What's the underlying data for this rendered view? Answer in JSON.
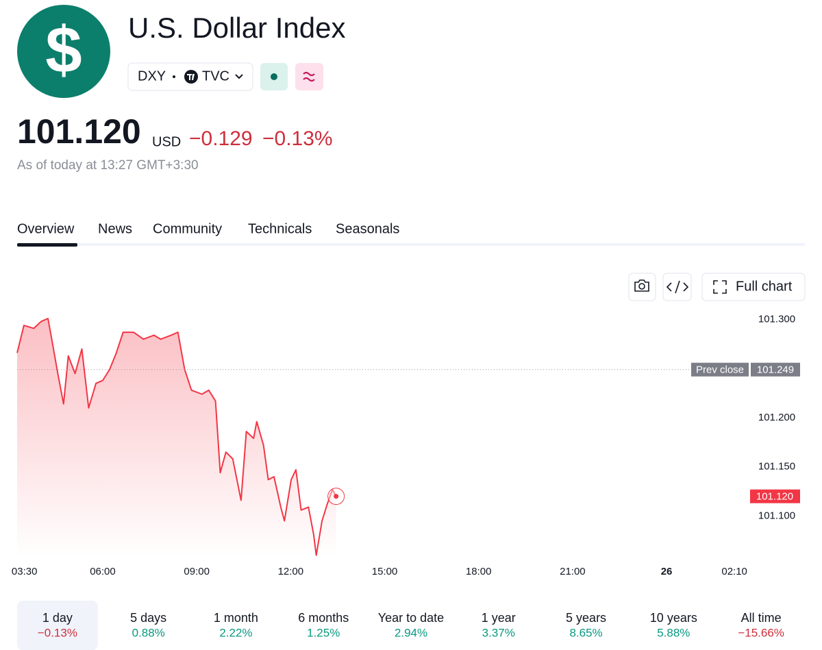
{
  "header": {
    "logo_symbol": "$",
    "title": "U.S. Dollar Index",
    "symbol": "DXY",
    "exchange": "TVC",
    "price": "101.120",
    "currency": "USD",
    "change": "−0.129",
    "change_percent": "−0.13%",
    "as_of": "As of today at 13:27 GMT+3:30"
  },
  "tabs": [
    "Overview",
    "News",
    "Community",
    "Technicals",
    "Seasonals"
  ],
  "toolbar": {
    "full_chart": "Full chart"
  },
  "chart_data": {
    "type": "line",
    "color": "#f23645",
    "fill": true,
    "grid": false,
    "x": [
      "03:16",
      "03:29",
      "03:48",
      "04:02",
      "04:15",
      "04:21",
      "04:34",
      "04:45",
      "04:54",
      "05:07",
      "05:20",
      "05:33",
      "05:47",
      "06:00",
      "06:13",
      "06:26",
      "06:39",
      "06:59",
      "07:18",
      "07:38",
      "07:51",
      "08:11",
      "08:24",
      "08:37",
      "08:50",
      "09:10",
      "09:23",
      "09:36",
      "09:45",
      "09:56",
      "10:09",
      "10:25",
      "10:35",
      "10:49",
      "10:55",
      "11:08",
      "11:17",
      "11:28",
      "11:41",
      "11:48",
      "12:01",
      "12:10",
      "12:20",
      "12:34",
      "12:44",
      "12:49",
      "13:00",
      "13:10",
      "13:20",
      "13:27"
    ],
    "values": [
      101.266,
      101.294,
      101.291,
      101.298,
      101.301,
      101.284,
      101.245,
      101.214,
      101.263,
      101.245,
      101.27,
      101.21,
      101.235,
      101.238,
      101.249,
      101.266,
      101.287,
      101.287,
      101.28,
      101.284,
      101.28,
      101.284,
      101.287,
      101.249,
      101.228,
      101.224,
      101.228,
      101.217,
      101.144,
      101.165,
      101.158,
      101.116,
      101.186,
      101.179,
      101.196,
      101.172,
      101.137,
      101.14,
      101.109,
      101.095,
      101.137,
      101.147,
      101.106,
      101.109,
      101.081,
      101.06,
      101.095,
      101.112,
      101.127,
      101.12
    ],
    "xlim": [
      "03:16",
      "02:40"
    ],
    "xticks": [
      "03:30",
      "06:00",
      "09:00",
      "12:00",
      "15:00",
      "18:00",
      "21:00",
      "26",
      "02:10"
    ],
    "ylim": [
      101.057,
      101.308
    ],
    "yticks": [
      {
        "value": 101.1,
        "label": "101.100"
      },
      {
        "value": 101.15,
        "label": "101.150"
      },
      {
        "value": 101.2,
        "label": "101.200"
      },
      {
        "value": 101.3,
        "label": "101.300"
      }
    ],
    "prev_close": 101.249,
    "prev_close_label": "Prev close",
    "last_label": {
      "value": 101.12,
      "label": "101.120"
    }
  },
  "selected_period": 0,
  "periods": [
    {
      "label": "1 day",
      "change": "−0.13%"
    },
    {
      "label": "5 days",
      "change": "0.88%"
    },
    {
      "label": "1 month",
      "change": "2.22%"
    },
    {
      "label": "6 months",
      "change": "1.25%"
    },
    {
      "label": "Year to date",
      "change": "2.94%"
    },
    {
      "label": "1 year",
      "change": "3.37%"
    },
    {
      "label": "5 years",
      "change": "8.65%"
    },
    {
      "label": "10 years",
      "change": "5.88%"
    },
    {
      "label": "All time",
      "change": "−15.66%"
    }
  ]
}
